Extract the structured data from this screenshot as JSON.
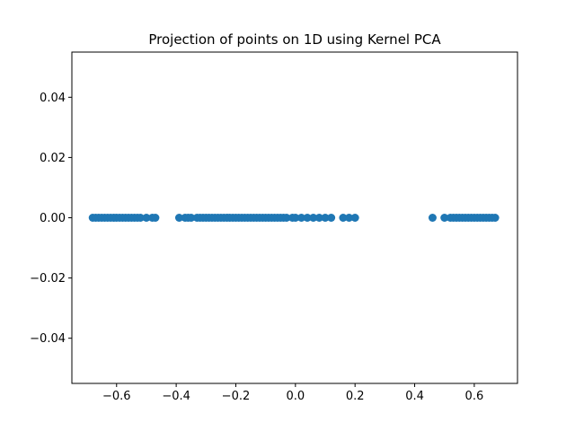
{
  "chart_data": {
    "type": "scatter",
    "title": "Projection of points on 1D using Kernel PCA",
    "xlabel": "",
    "ylabel": "",
    "xlim": [
      -0.75,
      0.745
    ],
    "ylim": [
      -0.055,
      0.055
    ],
    "grid": false,
    "legend": "none",
    "marker_color": "#1f77b4",
    "x_ticks": [
      {
        "value": -0.6,
        "label": "−0.6"
      },
      {
        "value": -0.4,
        "label": "−0.4"
      },
      {
        "value": -0.2,
        "label": "−0.2"
      },
      {
        "value": 0.0,
        "label": "0.0"
      },
      {
        "value": 0.2,
        "label": "0.2"
      },
      {
        "value": 0.4,
        "label": "0.4"
      },
      {
        "value": 0.6,
        "label": "0.6"
      }
    ],
    "y_ticks": [
      {
        "value": 0.04,
        "label": "0.04"
      },
      {
        "value": 0.02,
        "label": "0.02"
      },
      {
        "value": 0.0,
        "label": "0.00"
      },
      {
        "value": -0.02,
        "label": "−0.02"
      },
      {
        "value": -0.04,
        "label": "−0.04"
      }
    ],
    "series": [
      {
        "values": [
          {
            "x": -0.68,
            "y": 0
          },
          {
            "x": -0.67,
            "y": 0
          },
          {
            "x": -0.66,
            "y": 0
          },
          {
            "x": -0.65,
            "y": 0
          },
          {
            "x": -0.64,
            "y": 0
          },
          {
            "x": -0.63,
            "y": 0
          },
          {
            "x": -0.62,
            "y": 0
          },
          {
            "x": -0.61,
            "y": 0
          },
          {
            "x": -0.6,
            "y": 0
          },
          {
            "x": -0.59,
            "y": 0
          },
          {
            "x": -0.58,
            "y": 0
          },
          {
            "x": -0.57,
            "y": 0
          },
          {
            "x": -0.56,
            "y": 0
          },
          {
            "x": -0.55,
            "y": 0
          },
          {
            "x": -0.54,
            "y": 0
          },
          {
            "x": -0.53,
            "y": 0
          },
          {
            "x": -0.52,
            "y": 0
          },
          {
            "x": -0.5,
            "y": 0
          },
          {
            "x": -0.48,
            "y": 0
          },
          {
            "x": -0.47,
            "y": 0
          },
          {
            "x": -0.39,
            "y": 0
          },
          {
            "x": -0.37,
            "y": 0
          },
          {
            "x": -0.36,
            "y": 0
          },
          {
            "x": -0.35,
            "y": 0
          },
          {
            "x": -0.33,
            "y": 0
          },
          {
            "x": -0.32,
            "y": 0
          },
          {
            "x": -0.31,
            "y": 0
          },
          {
            "x": -0.3,
            "y": 0
          },
          {
            "x": -0.29,
            "y": 0
          },
          {
            "x": -0.28,
            "y": 0
          },
          {
            "x": -0.27,
            "y": 0
          },
          {
            "x": -0.26,
            "y": 0
          },
          {
            "x": -0.25,
            "y": 0
          },
          {
            "x": -0.24,
            "y": 0
          },
          {
            "x": -0.23,
            "y": 0
          },
          {
            "x": -0.22,
            "y": 0
          },
          {
            "x": -0.21,
            "y": 0
          },
          {
            "x": -0.2,
            "y": 0
          },
          {
            "x": -0.19,
            "y": 0
          },
          {
            "x": -0.18,
            "y": 0
          },
          {
            "x": -0.17,
            "y": 0
          },
          {
            "x": -0.16,
            "y": 0
          },
          {
            "x": -0.15,
            "y": 0
          },
          {
            "x": -0.14,
            "y": 0
          },
          {
            "x": -0.13,
            "y": 0
          },
          {
            "x": -0.12,
            "y": 0
          },
          {
            "x": -0.11,
            "y": 0
          },
          {
            "x": -0.1,
            "y": 0
          },
          {
            "x": -0.09,
            "y": 0
          },
          {
            "x": -0.08,
            "y": 0
          },
          {
            "x": -0.07,
            "y": 0
          },
          {
            "x": -0.06,
            "y": 0
          },
          {
            "x": -0.05,
            "y": 0
          },
          {
            "x": -0.04,
            "y": 0
          },
          {
            "x": -0.03,
            "y": 0
          },
          {
            "x": -0.01,
            "y": 0
          },
          {
            "x": 0.0,
            "y": 0
          },
          {
            "x": 0.02,
            "y": 0
          },
          {
            "x": 0.04,
            "y": 0
          },
          {
            "x": 0.06,
            "y": 0
          },
          {
            "x": 0.08,
            "y": 0
          },
          {
            "x": 0.1,
            "y": 0
          },
          {
            "x": 0.12,
            "y": 0
          },
          {
            "x": 0.16,
            "y": 0
          },
          {
            "x": 0.18,
            "y": 0
          },
          {
            "x": 0.2,
            "y": 0
          },
          {
            "x": 0.46,
            "y": 0
          },
          {
            "x": 0.5,
            "y": 0
          },
          {
            "x": 0.52,
            "y": 0
          },
          {
            "x": 0.53,
            "y": 0
          },
          {
            "x": 0.54,
            "y": 0
          },
          {
            "x": 0.55,
            "y": 0
          },
          {
            "x": 0.56,
            "y": 0
          },
          {
            "x": 0.57,
            "y": 0
          },
          {
            "x": 0.58,
            "y": 0
          },
          {
            "x": 0.59,
            "y": 0
          },
          {
            "x": 0.6,
            "y": 0
          },
          {
            "x": 0.61,
            "y": 0
          },
          {
            "x": 0.62,
            "y": 0
          },
          {
            "x": 0.63,
            "y": 0
          },
          {
            "x": 0.64,
            "y": 0
          },
          {
            "x": 0.65,
            "y": 0
          },
          {
            "x": 0.66,
            "y": 0
          },
          {
            "x": 0.67,
            "y": 0
          }
        ]
      }
    ]
  }
}
